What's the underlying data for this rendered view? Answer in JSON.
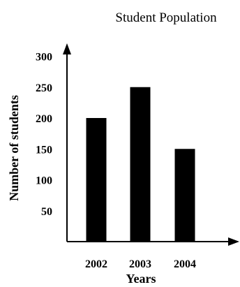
{
  "chart_data": {
    "type": "bar",
    "title": "Student Population",
    "xlabel": "Years",
    "ylabel": "Number of students",
    "categories": [
      "2002",
      "2003",
      "2004"
    ],
    "values": [
      200,
      250,
      150
    ],
    "ylim": [
      0,
      300
    ],
    "yticks": [
      50,
      100,
      150,
      200,
      250,
      300
    ],
    "grid": false,
    "bar_color": "#000000"
  }
}
